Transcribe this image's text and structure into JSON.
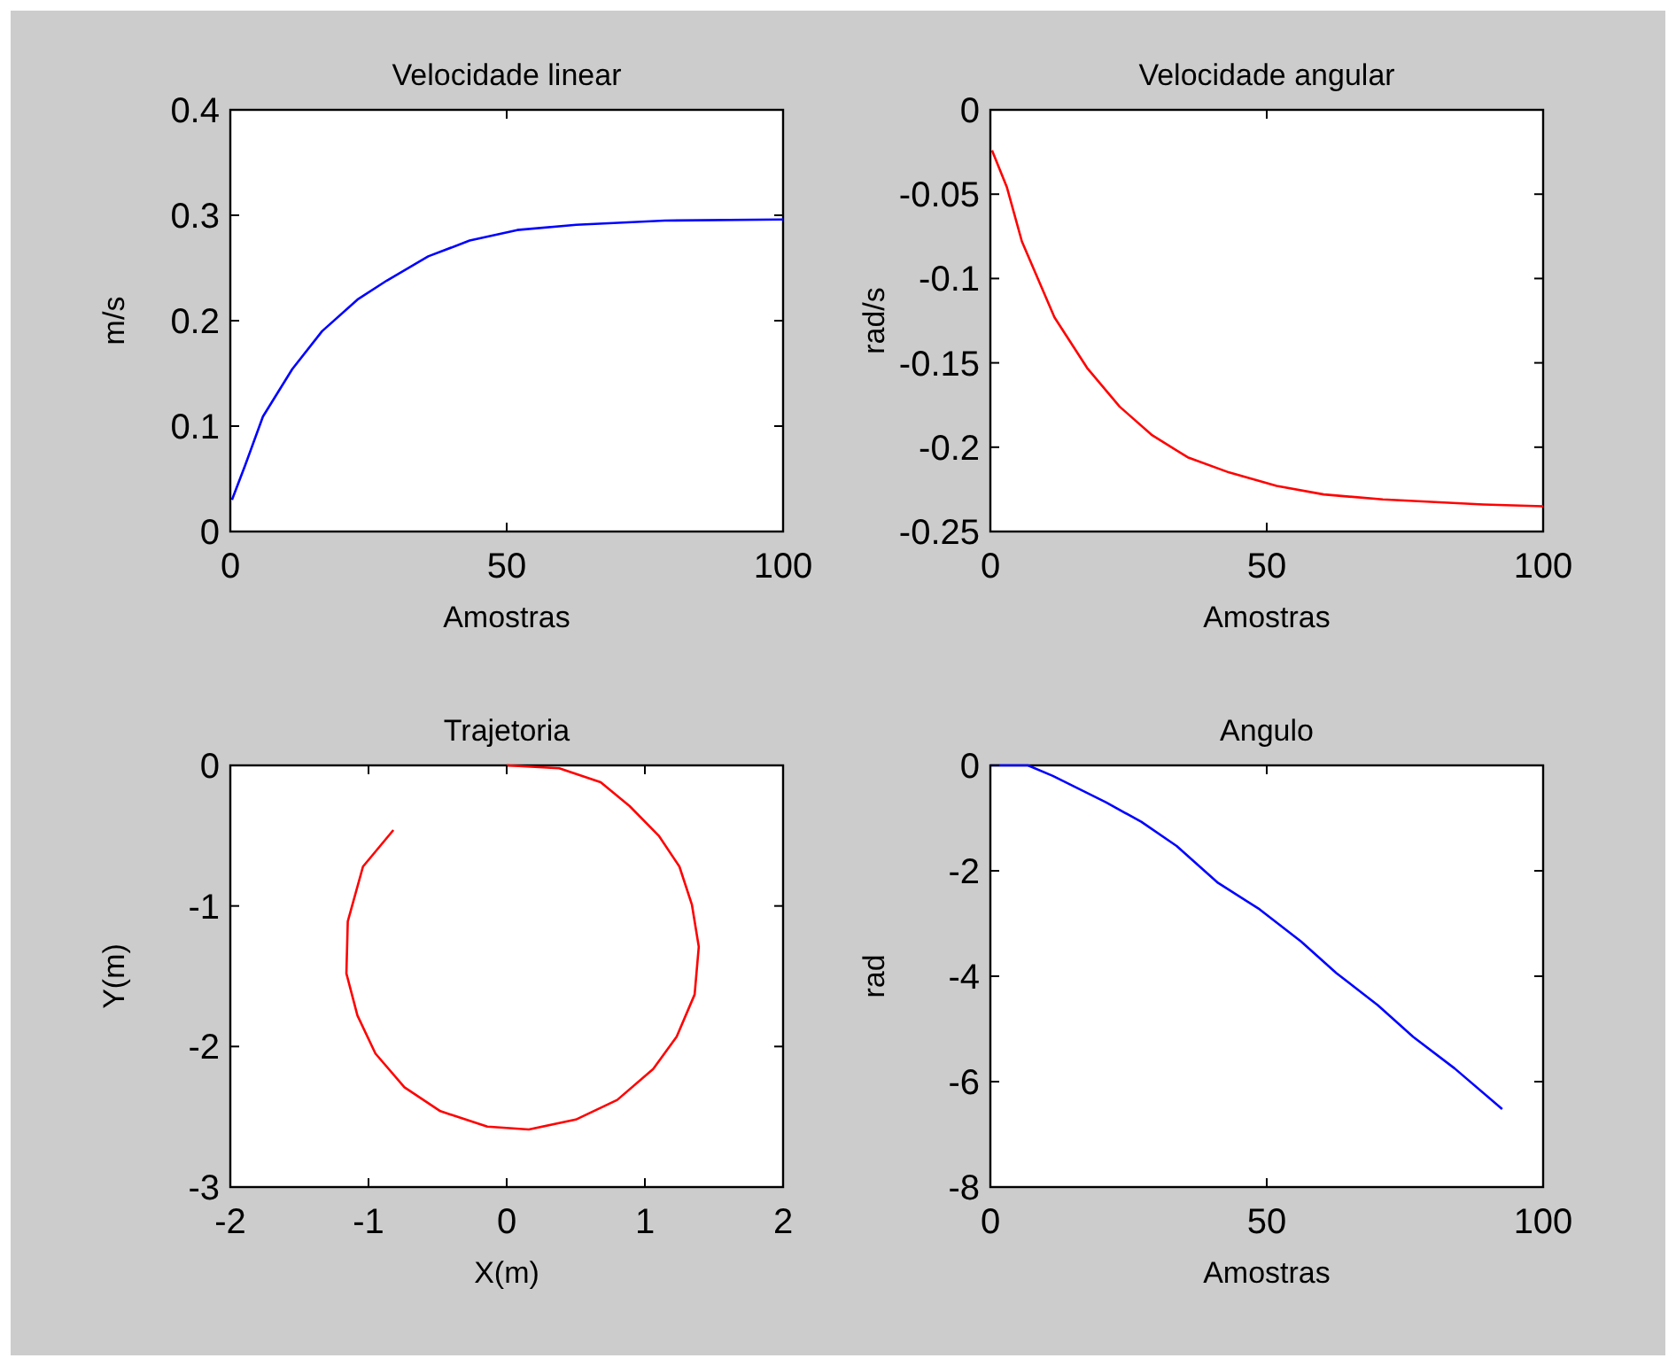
{
  "chart_data": [
    {
      "type": "line",
      "title": "Velocidade linear",
      "xlabel": "Amostras",
      "ylabel": "m/s",
      "xlim": [
        0,
        100
      ],
      "ylim": [
        0,
        0.4
      ],
      "xticks": [
        0,
        50,
        100
      ],
      "yticks": [
        0,
        0.1,
        0.2,
        0.3,
        0.4
      ],
      "series": [
        {
          "color": "#0000ff",
          "x": [
            0.3,
            2.7,
            5.9,
            11.2,
            16.6,
            23,
            28.3,
            35.8,
            43.3,
            51.9,
            62.6,
            78.6,
            100
          ],
          "values": [
            0.03,
            0.063,
            0.109,
            0.154,
            0.19,
            0.22,
            0.238,
            0.261,
            0.276,
            0.286,
            0.291,
            0.295,
            0.296
          ]
        }
      ]
    },
    {
      "type": "line",
      "title": "Velocidade angular",
      "xlabel": "Amostras",
      "ylabel": "rad/s",
      "xlim": [
        0,
        100
      ],
      "ylim": [
        -0.25,
        0
      ],
      "xticks": [
        0,
        50,
        100
      ],
      "yticks": [
        -0.25,
        -0.2,
        -0.15,
        -0.1,
        -0.05,
        0
      ],
      "series": [
        {
          "color": "#ff0000",
          "x": [
            0.3,
            3,
            5.7,
            11.6,
            17.5,
            23.4,
            29.3,
            35.7,
            43.2,
            51.8,
            60.3,
            71,
            89.2,
            100
          ],
          "values": [
            -0.024,
            -0.046,
            -0.078,
            -0.123,
            -0.153,
            -0.176,
            -0.193,
            -0.206,
            -0.215,
            -0.223,
            -0.228,
            -0.231,
            -0.234,
            -0.235
          ]
        }
      ]
    },
    {
      "type": "line",
      "title": "Trajetoria",
      "xlabel": "X(m)",
      "ylabel": "Y(m)",
      "xlim": [
        -2,
        2
      ],
      "ylim": [
        -3,
        0
      ],
      "xticks": [
        -2,
        -1,
        0,
        1,
        2
      ],
      "yticks": [
        -3,
        -2,
        -1,
        0
      ],
      "series": [
        {
          "color": "#ff0000",
          "x": [
            0,
            0.38,
            0.68,
            0.89,
            1.1,
            1.25,
            1.34,
            1.39,
            1.36,
            1.23,
            1.06,
            0.8,
            0.5,
            0.16,
            -0.14,
            -0.48,
            -0.74,
            -0.95,
            -1.08,
            -1.16,
            -1.15,
            -1.04,
            -0.82
          ],
          "values": [
            0,
            -0.02,
            -0.12,
            -0.29,
            -0.5,
            -0.72,
            -0.99,
            -1.29,
            -1.63,
            -1.93,
            -2.16,
            -2.38,
            -2.52,
            -2.59,
            -2.57,
            -2.46,
            -2.29,
            -2.05,
            -1.78,
            -1.48,
            -1.11,
            -0.72,
            -0.46
          ]
        }
      ]
    },
    {
      "type": "line",
      "title": "Angulo",
      "xlabel": "Amostras",
      "ylabel": "rad",
      "xlim": [
        0,
        100
      ],
      "ylim": [
        -8,
        0
      ],
      "xticks": [
        0,
        50,
        100
      ],
      "yticks": [
        -8,
        -6,
        -4,
        -2,
        0
      ],
      "series": [
        {
          "color": "#0000ff",
          "x": [
            0,
            6.8,
            11.3,
            20.9,
            27.3,
            33.7,
            41.2,
            48.7,
            56.2,
            62.6,
            70.1,
            76.5,
            84,
            92.6
          ],
          "values": [
            0,
            0,
            -0.2,
            -0.7,
            -1.07,
            -1.53,
            -2.23,
            -2.73,
            -3.34,
            -3.94,
            -4.55,
            -5.15,
            -5.75,
            -6.52
          ]
        }
      ]
    }
  ]
}
